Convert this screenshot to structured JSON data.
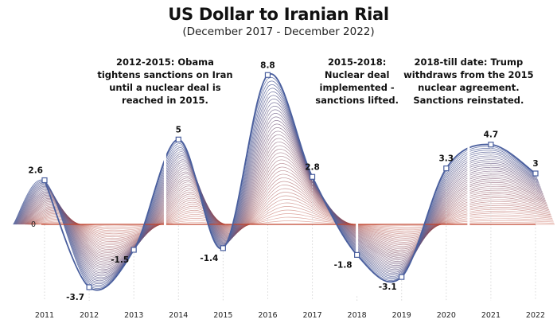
{
  "chart_data": {
    "type": "line",
    "title": "US Dollar to Iranian Rial",
    "subtitle": "(December 2017 - December 2022)",
    "x": [
      2011,
      2012,
      2013,
      2014,
      2015,
      2016,
      2017,
      2018,
      2019,
      2020,
      2021,
      2022
    ],
    "xlim": [
      2011,
      2022
    ],
    "ylim": [
      -4.5,
      10.5
    ],
    "zero_label": "0",
    "points": [
      {
        "x": 2011.0,
        "y": 2.6,
        "label": "2.6"
      },
      {
        "x": 2012.0,
        "y": -3.7,
        "label": "-3.7"
      },
      {
        "x": 2013.0,
        "y": -1.5,
        "label": "-1.5"
      },
      {
        "x": 2014.0,
        "y": 5.0,
        "label": "5"
      },
      {
        "x": 2015.0,
        "y": -1.4,
        "label": "-1.4"
      },
      {
        "x": 2016.0,
        "y": 8.8,
        "label": "8.8"
      },
      {
        "x": 2017.0,
        "y": 2.8,
        "label": "2.8"
      },
      {
        "x": 2018.0,
        "y": -1.8,
        "label": "-1.8"
      },
      {
        "x": 2019.0,
        "y": -3.1,
        "label": "-3.1"
      },
      {
        "x": 2020.0,
        "y": 3.3,
        "label": "3.3"
      },
      {
        "x": 2021.0,
        "y": 4.7,
        "label": "4.7"
      },
      {
        "x": 2022.0,
        "y": 3.0,
        "label": "3"
      }
    ],
    "colors": {
      "line": "#4a5f9e",
      "baseline": "#c0442e"
    },
    "annotations": [
      {
        "x": 2013.7,
        "lines": [
          "2012-2015: Obama",
          "tightens sanctions on Iran",
          "until a nuclear deal is",
          "reached in 2015."
        ]
      },
      {
        "x": 2018.0,
        "lines": [
          "2015-2018:",
          "Nuclear deal",
          "implemented -",
          "sanctions lifted."
        ]
      },
      {
        "x": 2020.5,
        "lines": [
          "2018-till date: Trump",
          "withdraws from the 2015",
          "nuclear agreement.",
          "Sanctions reinstated."
        ]
      }
    ]
  }
}
